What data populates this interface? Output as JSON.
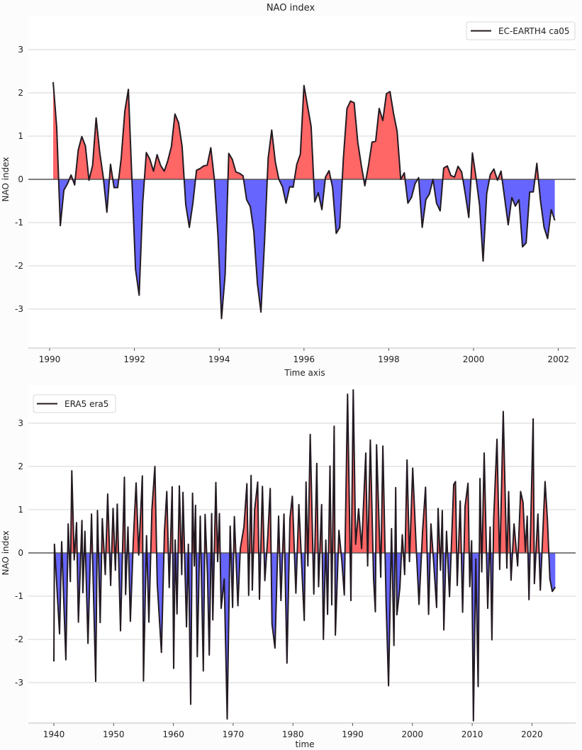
{
  "title": "NAO index",
  "colors": {
    "positive_fill": "#ff6666",
    "negative_fill": "#6666ff",
    "line": "#231a22",
    "zero_line": "#555555",
    "grid": "#d4d4d4"
  },
  "chart_data": [
    {
      "type": "area",
      "title": "NAO index",
      "xlabel": "Time axis",
      "ylabel": "NAO index",
      "xlim": [
        1990,
        2002
      ],
      "ylim": [
        -3,
        3
      ],
      "xticks": [
        "1990",
        "1992",
        "1994",
        "1996",
        "1998",
        "2000",
        "2002"
      ],
      "yticks": [
        "3",
        "2",
        "1",
        "0",
        "-1",
        "-2",
        "-3"
      ],
      "grid": true,
      "legend": {
        "position": "top-right",
        "entries": [
          "EC-EARTH4 ca05"
        ]
      },
      "fill_rule": "red above zero, blue below zero",
      "series": [
        {
          "name": "EC-EARTH4 ca05",
          "x_start": "1990-02",
          "x_end": "2001-12",
          "frequency": "monthly",
          "values": [
            2.25,
            1.2,
            -1.07,
            -0.25,
            -0.1,
            0.1,
            -0.13,
            0.68,
            0.99,
            0.77,
            -0.02,
            0.32,
            1.42,
            0.62,
            0.05,
            -0.76,
            0.35,
            -0.19,
            -0.19,
            0.49,
            1.58,
            2.08,
            -0.05,
            -2.08,
            -2.68,
            -0.55,
            0.62,
            0.46,
            0.19,
            0.57,
            0.32,
            0.19,
            0.43,
            0.76,
            1.51,
            1.31,
            0.76,
            -0.58,
            -1.11,
            -0.55,
            0.21,
            0.25,
            0.31,
            0.33,
            0.73,
            0,
            -1.3,
            -3.22,
            -2.2,
            0.6,
            0.46,
            0.17,
            0.14,
            0.08,
            -0.47,
            -0.63,
            -1.2,
            -2.41,
            -3.07,
            -1.43,
            0.49,
            1.14,
            0.4,
            0,
            -0.17,
            -0.55,
            -0.17,
            -0.18,
            0.35,
            0.58,
            2.17,
            1.69,
            1.22,
            -0.52,
            -0.31,
            -0.7,
            0.05,
            0.2,
            -0.19,
            -1.25,
            -1.11,
            0.49,
            1.64,
            1.81,
            1.77,
            0.87,
            0.32,
            -0.15,
            0.32,
            0.86,
            0.88,
            1.64,
            1.36,
            1.98,
            2.03,
            1.52,
            1.11,
            0,
            0.15,
            -0.55,
            -0.42,
            -0.1,
            0.04,
            -1.11,
            -0.47,
            -0.34,
            0,
            -0.55,
            -0.73,
            0.26,
            0.31,
            0.09,
            0.05,
            0.3,
            0.17,
            -0.33,
            -0.88,
            0.61,
            0.05,
            -0.6,
            -1.89,
            -0.33,
            0.11,
            0.24,
            -0.02,
            0.19,
            -0.44,
            -1.05,
            -0.42,
            -0.62,
            -0.47,
            -1.56,
            -1.47,
            -0.29,
            -0.29,
            0.37,
            -0.49,
            -1.11,
            -1.37,
            -0.7,
            -0.95
          ]
        }
      ]
    },
    {
      "type": "area",
      "xlabel": "time",
      "ylabel": "NAO index",
      "xlim": [
        1936,
        2027
      ],
      "ylim": [
        -3.9,
        3.8
      ],
      "xticks": [
        "1940",
        "1950",
        "1960",
        "1970",
        "1980",
        "1990",
        "2000",
        "2010",
        "2020"
      ],
      "yticks": [
        "3",
        "2",
        "1",
        "0",
        "-1",
        "-2",
        "-3"
      ],
      "grid": true,
      "legend": {
        "position": "top-left",
        "entries": [
          "ERA5 era5"
        ]
      },
      "fill_rule": "red above zero, blue below zero",
      "series": [
        {
          "name": "ERA5 era5",
          "points": [
            [
              1940.0,
              -2.51
            ],
            [
              1940.1,
              0.2
            ],
            [
              1940.95,
              -1.87
            ],
            [
              1941.3,
              0.26
            ],
            [
              1942.0,
              -2.47
            ],
            [
              1942.4,
              0.67
            ],
            [
              1942.75,
              -0.66
            ],
            [
              1943.0,
              1.9
            ],
            [
              1943.4,
              -0.16
            ],
            [
              1943.8,
              0.7
            ],
            [
              1944.1,
              -1.6
            ],
            [
              1944.7,
              0.75
            ],
            [
              1944.85,
              -0.92
            ],
            [
              1945.2,
              0.5
            ],
            [
              1945.7,
              -2.09
            ],
            [
              1946.3,
              0.9
            ],
            [
              1947.0,
              -2.97
            ],
            [
              1947.3,
              0.98
            ],
            [
              1947.75,
              -1.61
            ],
            [
              1948.1,
              0.79
            ],
            [
              1948.6,
              -0.5
            ],
            [
              1949.0,
              1.36
            ],
            [
              1949.5,
              -0.75
            ],
            [
              1949.9,
              1.03
            ],
            [
              1950.3,
              -0.4
            ],
            [
              1950.6,
              1.13
            ],
            [
              1951.15,
              -1.8
            ],
            [
              1951.8,
              1.75
            ],
            [
              1952.0,
              -0.96
            ],
            [
              1952.4,
              0.6
            ],
            [
              1952.8,
              -1.58
            ],
            [
              1953.3,
              0.3
            ],
            [
              1953.76,
              1.62
            ],
            [
              1954.2,
              -0.05
            ],
            [
              1954.8,
              1.78
            ],
            [
              1955.0,
              -2.96
            ],
            [
              1955.5,
              0.4
            ],
            [
              1955.9,
              -1.6
            ],
            [
              1956.4,
              1.0
            ],
            [
              1956.9,
              2.0
            ],
            [
              1957.3,
              -0.7
            ],
            [
              1958.0,
              -2.3
            ],
            [
              1958.5,
              0.5
            ],
            [
              1958.9,
              1.42
            ],
            [
              1959.3,
              -0.8
            ],
            [
              1959.8,
              1.53
            ],
            [
              1960.05,
              -2.67
            ],
            [
              1960.3,
              0.3
            ],
            [
              1960.6,
              -1.41
            ],
            [
              1961.0,
              1.55
            ],
            [
              1961.4,
              -0.5
            ],
            [
              1961.6,
              1.4
            ],
            [
              1962.2,
              -1.71
            ],
            [
              1962.5,
              0.2
            ],
            [
              1962.9,
              -3.5
            ],
            [
              1963.2,
              1.38
            ],
            [
              1963.5,
              -0.3
            ],
            [
              1963.7,
              1.1
            ],
            [
              1964.0,
              -2.4
            ],
            [
              1964.5,
              0.85
            ],
            [
              1965.0,
              -2.73
            ],
            [
              1965.3,
              0.89
            ],
            [
              1965.7,
              -0.5
            ],
            [
              1966.0,
              -2.36
            ],
            [
              1966.4,
              0.91
            ],
            [
              1966.6,
              -1.55
            ],
            [
              1967.1,
              1.63
            ],
            [
              1967.4,
              -0.2
            ],
            [
              1967.7,
              0.91
            ],
            [
              1968.0,
              -1.28
            ],
            [
              1968.5,
              -0.6
            ],
            [
              1969.0,
              -3.84
            ],
            [
              1969.5,
              0.62
            ],
            [
              1969.9,
              -1.26
            ],
            [
              1970.2,
              0.84
            ],
            [
              1970.8,
              -1.22
            ],
            [
              1971.2,
              0.1
            ],
            [
              1971.8,
              0.6
            ],
            [
              1972.3,
              1.6
            ],
            [
              1972.6,
              -0.98
            ],
            [
              1973.0,
              1.79
            ],
            [
              1973.2,
              -0.86
            ],
            [
              1973.6,
              1.0
            ],
            [
              1974.1,
              1.64
            ],
            [
              1974.4,
              -1.07
            ],
            [
              1974.9,
              1.54
            ],
            [
              1975.3,
              -0.64
            ],
            [
              1975.8,
              0.4
            ],
            [
              1976.2,
              1.49
            ],
            [
              1976.5,
              -1.64
            ],
            [
              1977.0,
              -2.2
            ],
            [
              1977.6,
              0.85
            ],
            [
              1978.0,
              -1.1
            ],
            [
              1978.5,
              0.9
            ],
            [
              1979.0,
              -2.55
            ],
            [
              1979.5,
              0.8
            ],
            [
              1979.9,
              1.31
            ],
            [
              1980.5,
              -0.93
            ],
            [
              1981.0,
              1.12
            ],
            [
              1981.9,
              -1.56
            ],
            [
              1982.2,
              1.64
            ],
            [
              1982.5,
              -0.3
            ],
            [
              1982.9,
              2.74
            ],
            [
              1983.5,
              -0.95
            ],
            [
              1984.0,
              2.07
            ],
            [
              1984.3,
              -0.78
            ],
            [
              1984.8,
              1.12
            ],
            [
              1985.1,
              -2.0
            ],
            [
              1985.5,
              0.3
            ],
            [
              1985.8,
              -1.42
            ],
            [
              1986.2,
              2.01
            ],
            [
              1986.5,
              -1.2
            ],
            [
              1986.9,
              2.93
            ],
            [
              1987.1,
              -1.9
            ],
            [
              1987.7,
              0.52
            ],
            [
              1988.2,
              -0.2
            ],
            [
              1988.6,
              -0.97
            ],
            [
              1989.15,
              3.67
            ],
            [
              1989.7,
              -1.1
            ],
            [
              1990.1,
              3.77
            ],
            [
              1990.5,
              0.2
            ],
            [
              1991.0,
              1.02
            ],
            [
              1991.5,
              0.1
            ],
            [
              1992.2,
              2.31
            ],
            [
              1992.5,
              -0.3
            ],
            [
              1992.95,
              2.61
            ],
            [
              1993.5,
              -0.6
            ],
            [
              1993.8,
              -1.36
            ],
            [
              1994.0,
              2.5
            ],
            [
              1994.7,
              -0.56
            ],
            [
              1995.05,
              2.47
            ],
            [
              1995.6,
              -1.17
            ],
            [
              1996.0,
              -3.07
            ],
            [
              1996.5,
              0.56
            ],
            [
              1996.9,
              -2.14
            ],
            [
              1997.2,
              1.51
            ],
            [
              1997.4,
              -1.43
            ],
            [
              1997.9,
              -0.8
            ],
            [
              1998.3,
              0.42
            ],
            [
              1998.7,
              -0.5
            ],
            [
              1999.1,
              2.15
            ],
            [
              1999.5,
              -0.2
            ],
            [
              2000.05,
              1.96
            ],
            [
              2000.6,
              0.2
            ],
            [
              2001.1,
              -1.19
            ],
            [
              2001.7,
              0.5
            ],
            [
              2002.2,
              1.52
            ],
            [
              2002.7,
              -1.42
            ],
            [
              2003.1,
              0.67
            ],
            [
              2003.6,
              -0.3
            ],
            [
              2004.05,
              -1.26
            ],
            [
              2004.3,
              1.03
            ],
            [
              2004.7,
              -0.4
            ],
            [
              2005.0,
              0.98
            ],
            [
              2005.25,
              -1.78
            ],
            [
              2005.7,
              0.5
            ],
            [
              2006.2,
              -1.01
            ],
            [
              2006.9,
              1.58
            ],
            [
              2007.2,
              1.65
            ],
            [
              2007.5,
              -0.75
            ],
            [
              2008.0,
              1.2
            ],
            [
              2008.4,
              -1.37
            ],
            [
              2008.8,
              1.07
            ],
            [
              2009.3,
              1.61
            ],
            [
              2009.6,
              -0.78
            ],
            [
              2009.9,
              0.28
            ],
            [
              2010.2,
              -3.88
            ],
            [
              2010.6,
              -0.14
            ],
            [
              2011.0,
              -3.09
            ],
            [
              2011.3,
              1.72
            ],
            [
              2011.6,
              -0.44
            ],
            [
              2012.0,
              2.31
            ],
            [
              2012.6,
              -1.28
            ],
            [
              2013.0,
              0.6
            ],
            [
              2013.3,
              -2.01
            ],
            [
              2013.6,
              0.78
            ],
            [
              2014.15,
              2.63
            ],
            [
              2014.6,
              -0.38
            ],
            [
              2015.2,
              3.27
            ],
            [
              2015.8,
              -0.35
            ],
            [
              2016.1,
              1.42
            ],
            [
              2016.5,
              -0.63
            ],
            [
              2017.0,
              0.67
            ],
            [
              2017.6,
              -0.3
            ],
            [
              2018.1,
              1.42
            ],
            [
              2018.5,
              1.17
            ],
            [
              2018.9,
              0.03
            ],
            [
              2019.2,
              0.85
            ],
            [
              2019.5,
              -1.08
            ],
            [
              2020.2,
              3.1
            ],
            [
              2020.4,
              -0.71
            ],
            [
              2021.0,
              0.9
            ],
            [
              2021.4,
              -0.86
            ],
            [
              2022.2,
              1.65
            ],
            [
              2022.6,
              0.74
            ],
            [
              2023.0,
              -0.6
            ],
            [
              2023.4,
              -0.89
            ],
            [
              2023.9,
              -0.79
            ]
          ]
        }
      ]
    }
  ]
}
